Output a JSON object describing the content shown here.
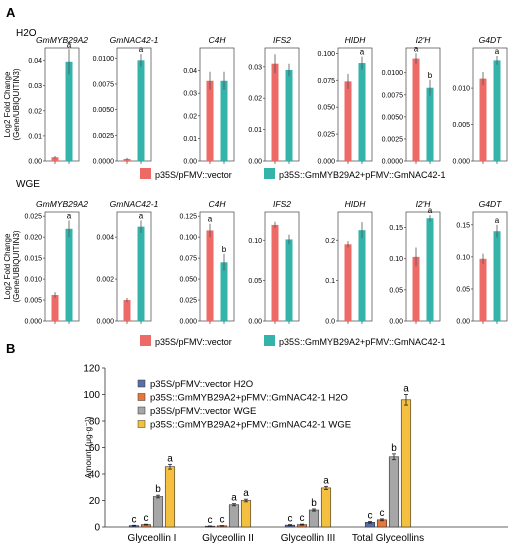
{
  "panel_labels": {
    "a": "A",
    "b": "B"
  },
  "colors": {
    "vector": "#ed6a66",
    "overexp": "#33b3aa",
    "b_vector_h2o": "#5c6ea8",
    "b_overexp_h2o": "#e8783a",
    "b_vector_wge": "#a6a6a6",
    "b_overexp_wge": "#f5c040"
  },
  "legend_a": {
    "vector": "p35S/pFMV::vector",
    "overexp": "p35S::GmMYB29A2+pFMV::GmNAC42-1"
  },
  "legend_b": [
    "p35S/pFMV::vector H2O",
    "p35S::GmMYB29A2+pFMV::GmNAC42-1 H2O",
    "p35S/pFMV::vector WGE",
    "p35S::GmMYB29A2+pFMV::GmNAC42-1 WGE"
  ],
  "chart_data": [
    {
      "type": "bar",
      "panel": "A",
      "row_label": "H2O",
      "ylabel": "Log2 Fold Change\n(Gene/UBIQUITIN3)",
      "series_names": [
        "p35S/pFMV::vector",
        "p35S::GmMYB29A2+pFMV::GmNAC42-1"
      ],
      "genes": [
        {
          "name": "GmMYB29A2",
          "italic": true,
          "ylim": [
            0,
            0.045
          ],
          "ticks": [
            "0.00",
            "0.01",
            "0.02",
            "0.03",
            "0.04"
          ],
          "values": [
            0.0015,
            0.0395
          ],
          "errors": [
            0.0005,
            0.005
          ],
          "letters": [
            "",
            "a"
          ]
        },
        {
          "name": "GmNAC42-1",
          "italic": true,
          "ylim": [
            0,
            0.011
          ],
          "ticks": [
            "0.0000",
            "0.0025",
            "0.0050",
            "0.0075",
            "0.0100"
          ],
          "values": [
            0.0002,
            0.0098
          ],
          "errors": [
            0.0001,
            0.0006
          ],
          "letters": [
            "",
            "a"
          ]
        },
        {
          "name": "C4H",
          "italic": true,
          "ylim": [
            0,
            0.05
          ],
          "ticks": [
            "0.00",
            "0.01",
            "0.02",
            "0.03",
            "0.04"
          ],
          "values": [
            0.0355,
            0.0355
          ],
          "errors": [
            0.004,
            0.004
          ],
          "letters": [
            "",
            ""
          ]
        },
        {
          "name": "IFS2",
          "italic": true,
          "ylim": [
            0,
            0.036
          ],
          "ticks": [
            "0.00",
            "0.01",
            "0.02",
            "0.03"
          ],
          "values": [
            0.031,
            0.029
          ],
          "errors": [
            0.003,
            0.002
          ],
          "letters": [
            "",
            ""
          ]
        },
        {
          "name": "HIDH",
          "italic": true,
          "ylim": [
            0,
            0.105
          ],
          "ticks": [
            "0.000",
            "0.025",
            "0.050",
            "0.075",
            "0.100"
          ],
          "values": [
            0.074,
            0.091
          ],
          "errors": [
            0.007,
            0.006
          ],
          "letters": [
            "",
            "a"
          ]
        },
        {
          "name": "I2'H",
          "italic": true,
          "ylim": [
            0,
            0.0128
          ],
          "ticks": [
            "0.0000",
            "0.0025",
            "0.0050",
            "0.0075",
            "0.0100"
          ],
          "values": [
            0.0116,
            0.0083
          ],
          "errors": [
            0.0006,
            0.0009
          ],
          "letters": [
            "a",
            "b"
          ]
        },
        {
          "name": "G4DT",
          "italic": true,
          "ylim": [
            0,
            0.0155
          ],
          "ticks": [
            "0.000",
            "0.005",
            "0.010"
          ],
          "values": [
            0.0113,
            0.0138
          ],
          "errors": [
            0.0009,
            0.0006
          ],
          "letters": [
            "",
            "a"
          ]
        }
      ]
    },
    {
      "type": "bar",
      "panel": "A",
      "row_label": "WGE",
      "ylabel": "Log2 Fold Change\n(Gene/UBIQUITIN3)",
      "series_names": [
        "p35S/pFMV::vector",
        "p35S::GmMYB29A2+pFMV::GmNAC42-1"
      ],
      "genes": [
        {
          "name": "GmMYB29A2",
          "italic": true,
          "ylim": [
            0,
            0.026
          ],
          "ticks": [
            "0.000",
            "0.005",
            "0.010",
            "0.015",
            "0.020",
            "0.025"
          ],
          "values": [
            0.0062,
            0.022
          ],
          "errors": [
            0.0007,
            0.002
          ],
          "letters": [
            "",
            "a"
          ]
        },
        {
          "name": "GmNAC42-1",
          "italic": true,
          "ylim": [
            0,
            0.0052
          ],
          "ticks": [
            "0.000",
            "0.002",
            "0.004"
          ],
          "values": [
            0.001,
            0.0045
          ],
          "errors": [
            0.0001,
            0.0003
          ],
          "letters": [
            "",
            "a"
          ]
        },
        {
          "name": "C4H",
          "italic": true,
          "ylim": [
            0,
            0.13
          ],
          "ticks": [
            "0.000",
            "0.025",
            "0.050",
            "0.075",
            "0.100",
            "0.125"
          ],
          "values": [
            0.108,
            0.07
          ],
          "errors": [
            0.008,
            0.01
          ],
          "letters": [
            "a",
            "b"
          ]
        },
        {
          "name": "IFS2",
          "italic": true,
          "ylim": [
            0,
            0.135
          ],
          "ticks": [
            "0.00",
            "0.05",
            "0.10"
          ],
          "values": [
            0.119,
            0.101
          ],
          "errors": [
            0.004,
            0.006
          ],
          "letters": [
            "",
            ""
          ]
        },
        {
          "name": "HIDH",
          "italic": true,
          "ylim": [
            0,
            0.27
          ],
          "ticks": [
            "0.0",
            "0.1",
            "0.2"
          ],
          "values": [
            0.19,
            0.225
          ],
          "errors": [
            0.008,
            0.02
          ],
          "letters": [
            "",
            ""
          ]
        },
        {
          "name": "I2'H",
          "italic": true,
          "ylim": [
            0,
            0.175
          ],
          "ticks": [
            "0.00",
            "0.05",
            "0.10",
            "0.15"
          ],
          "values": [
            0.103,
            0.165
          ],
          "errors": [
            0.015,
            0.005
          ],
          "letters": [
            "",
            "a"
          ]
        },
        {
          "name": "G4DT",
          "italic": true,
          "ylim": [
            0,
            0.17
          ],
          "ticks": [
            "0.00",
            "0.05",
            "0.10",
            "0.15"
          ],
          "values": [
            0.097,
            0.14
          ],
          "errors": [
            0.008,
            0.01
          ],
          "letters": [
            "",
            "a"
          ]
        }
      ]
    },
    {
      "type": "bar",
      "panel": "B",
      "ylabel": "Amount (μg·g⁻¹)",
      "ylim": [
        0,
        120
      ],
      "yticks": [
        "0",
        "20",
        "40",
        "60",
        "80",
        "100",
        "120"
      ],
      "categories": [
        "Glyceollin I",
        "Glyceollin II",
        "Glyceollin III",
        "Total Glyceollins"
      ],
      "series": [
        {
          "name": "p35S/pFMV::vector H2O",
          "values": [
            1.0,
            0.6,
            1.4,
            3.5
          ],
          "errors": [
            0.3,
            0.2,
            0.4,
            0.6
          ],
          "letters": [
            "c",
            "c",
            "c",
            "c"
          ]
        },
        {
          "name": "p35S::GmMYB29A2+pFMV::GmNAC42-1 H2O",
          "values": [
            1.8,
            0.9,
            1.8,
            5.4
          ],
          "errors": [
            0.3,
            0.2,
            0.4,
            0.7
          ],
          "letters": [
            "c",
            "c",
            "c",
            "c"
          ]
        },
        {
          "name": "p35S/pFMV::vector WGE",
          "values": [
            23.0,
            16.8,
            12.8,
            53.0
          ],
          "errors": [
            1.0,
            0.8,
            0.8,
            2.2
          ],
          "letters": [
            "b",
            "a",
            "b",
            "b"
          ]
        },
        {
          "name": "p35S::GmMYB29A2+pFMV::GmNAC42-1 WGE",
          "values": [
            45.5,
            20.0,
            29.5,
            96.0
          ],
          "errors": [
            1.8,
            1.0,
            1.2,
            4.0
          ],
          "letters": [
            "a",
            "a",
            "a",
            "a"
          ]
        }
      ]
    }
  ]
}
